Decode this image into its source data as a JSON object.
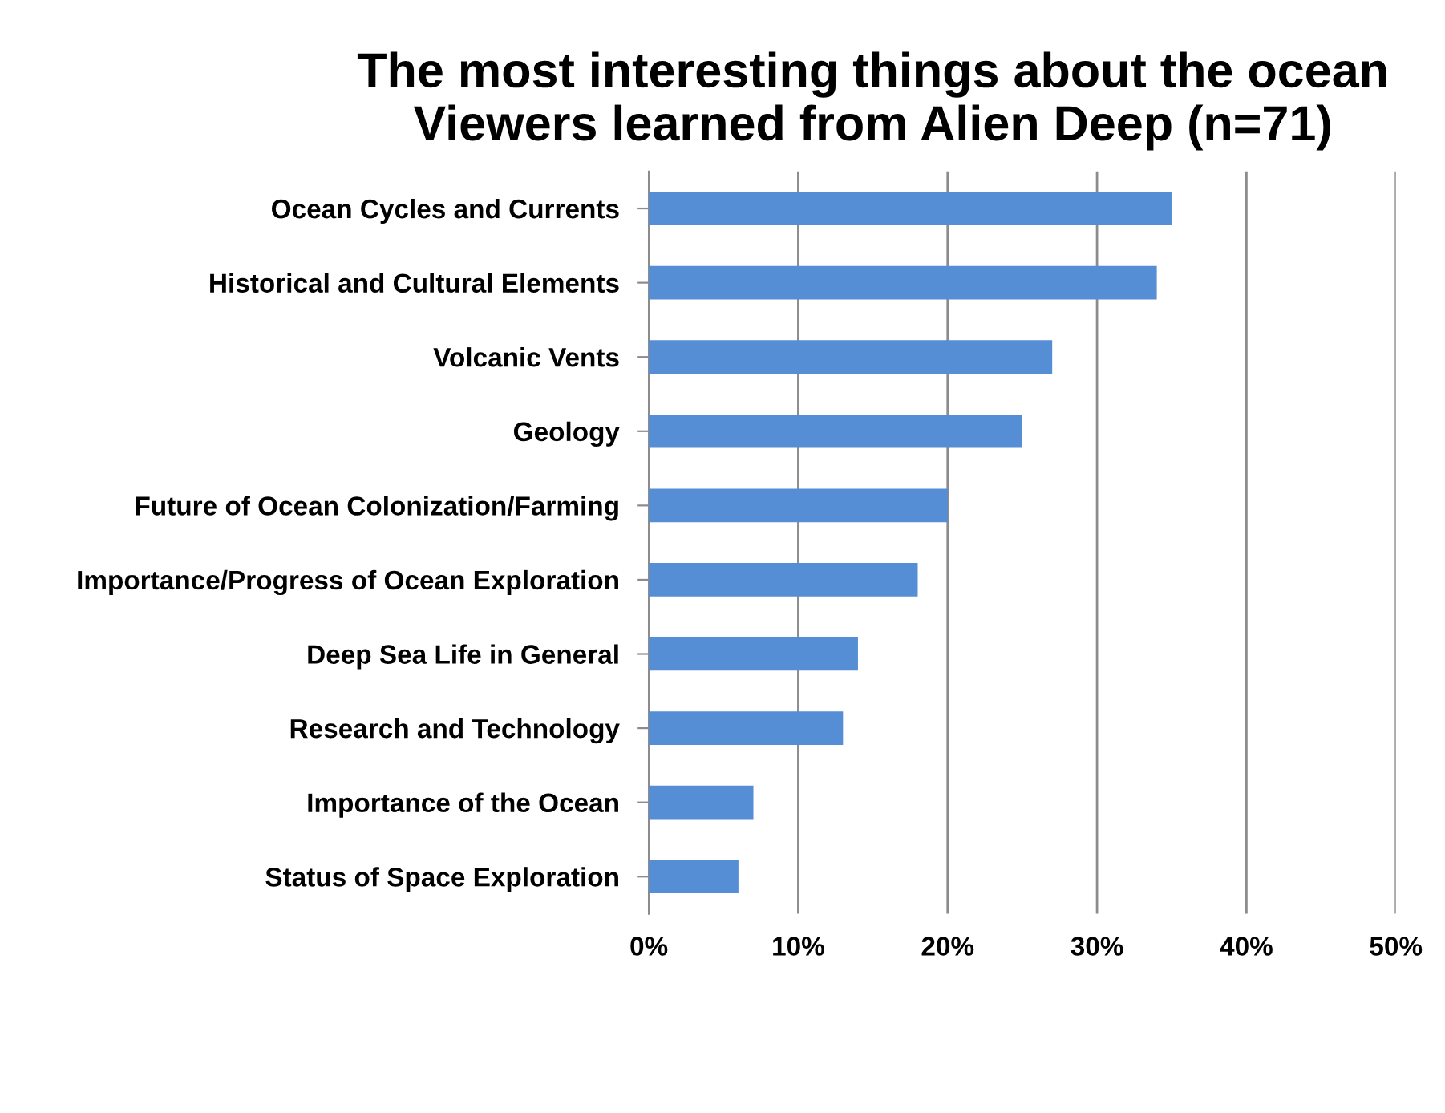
{
  "chart_data": {
    "type": "bar",
    "orientation": "horizontal",
    "title": "The most interesting things about the ocean\nViewers learned from Alien Deep (n=71)",
    "categories": [
      "Ocean Cycles and Currents",
      "Historical and Cultural Elements",
      "Volcanic Vents",
      "Geology",
      "Future of Ocean Colonization/Farming",
      "Importance/Progress of Ocean Exploration",
      "Deep Sea Life in General",
      "Research and Technology",
      "Importance of the Ocean",
      "Status of Space Exploration"
    ],
    "values": [
      35,
      34,
      27,
      25,
      20,
      18,
      14,
      13,
      7,
      6
    ],
    "color": "#558ed5",
    "xlim": [
      0,
      50
    ],
    "xticks": [
      {
        "value": 0,
        "label": "0%"
      },
      {
        "value": 10,
        "label": "10%"
      },
      {
        "value": 20,
        "label": "20%"
      },
      {
        "value": 30,
        "label": "30%"
      },
      {
        "value": 40,
        "label": "40%"
      },
      {
        "value": 50,
        "label": "50%"
      }
    ],
    "grid": "x"
  }
}
